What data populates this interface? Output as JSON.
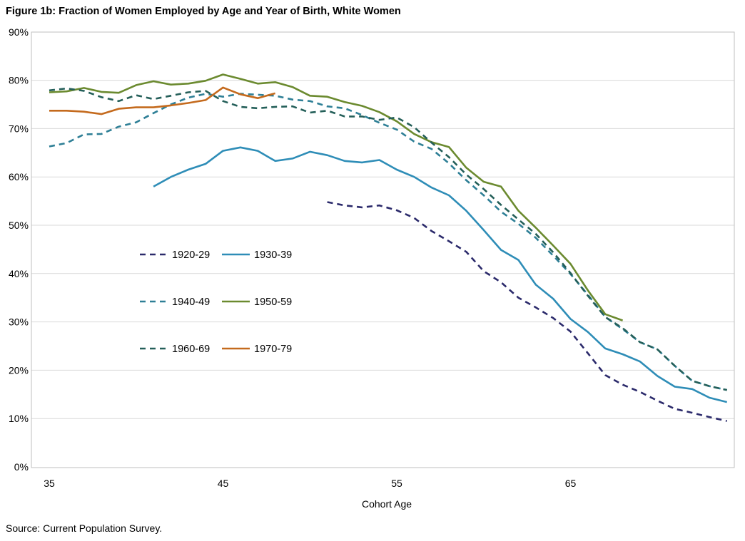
{
  "title": "Figure 1b: Fraction of Women Employed by Age and Year of Birth, White Women",
  "source": "Source: Current Population Survey.",
  "chart_data": {
    "type": "line",
    "title": "Figure 1b: Fraction of Women Employed by Age and Year of Birth, White Women",
    "xlabel": "Cohort Age",
    "ylabel": "",
    "xlim": [
      35,
      74
    ],
    "ylim": [
      0,
      0.9
    ],
    "x_ticks": [
      {
        "value": 35,
        "label": "35"
      },
      {
        "value": 45,
        "label": "45"
      },
      {
        "value": 55,
        "label": "55"
      },
      {
        "value": 65,
        "label": "65"
      }
    ],
    "y_ticks": [
      {
        "value": 0.0,
        "label": "0%"
      },
      {
        "value": 0.1,
        "label": "10%"
      },
      {
        "value": 0.2,
        "label": "20%"
      },
      {
        "value": 0.3,
        "label": "30%"
      },
      {
        "value": 0.4,
        "label": "40%"
      },
      {
        "value": 0.5,
        "label": "50%"
      },
      {
        "value": 0.6,
        "label": "60%"
      },
      {
        "value": 0.7,
        "label": "70%"
      },
      {
        "value": 0.8,
        "label": "80%"
      },
      {
        "value": 0.9,
        "label": "90%"
      }
    ],
    "grid": "horizontal",
    "legend_position": "center-left",
    "series": [
      {
        "name": "1920-29",
        "color": "#2b2a6b",
        "dashed": true,
        "x": [
          51,
          52,
          53,
          54,
          55,
          56,
          57,
          58,
          59,
          60,
          61,
          62,
          63,
          64,
          65,
          66,
          67,
          68,
          69,
          70,
          71,
          72,
          73,
          74
        ],
        "y": [
          0.548,
          0.541,
          0.537,
          0.541,
          0.531,
          0.515,
          0.488,
          0.467,
          0.445,
          0.405,
          0.382,
          0.35,
          0.33,
          0.308,
          0.28,
          0.235,
          0.19,
          0.17,
          0.155,
          0.137,
          0.12,
          0.112,
          0.103,
          0.095
        ]
      },
      {
        "name": "1930-39",
        "color": "#2e8db7",
        "dashed": false,
        "x": [
          41,
          42,
          43,
          44,
          45,
          46,
          47,
          48,
          49,
          50,
          51,
          52,
          53,
          54,
          55,
          56,
          57,
          58,
          59,
          60,
          61,
          62,
          63,
          64,
          65,
          66,
          67,
          68,
          69,
          70,
          71,
          72,
          73,
          74
        ],
        "y": [
          0.58,
          0.6,
          0.615,
          0.627,
          0.654,
          0.661,
          0.654,
          0.633,
          0.638,
          0.652,
          0.645,
          0.633,
          0.63,
          0.635,
          0.615,
          0.6,
          0.578,
          0.562,
          0.53,
          0.49,
          0.449,
          0.428,
          0.377,
          0.348,
          0.306,
          0.279,
          0.245,
          0.233,
          0.218,
          0.188,
          0.166,
          0.161,
          0.143,
          0.134
        ]
      },
      {
        "name": "1940-49",
        "color": "#2e7f96",
        "dashed": true,
        "x": [
          35,
          36,
          37,
          38,
          39,
          40,
          41,
          42,
          43,
          44,
          45,
          46,
          47,
          48,
          49,
          50,
          51,
          52,
          53,
          54,
          55,
          56,
          57,
          58,
          59,
          60,
          61,
          62,
          63,
          64,
          65,
          66,
          67,
          68,
          69,
          70,
          71,
          72,
          73,
          74
        ],
        "y": [
          0.663,
          0.67,
          0.688,
          0.689,
          0.704,
          0.713,
          0.732,
          0.75,
          0.764,
          0.772,
          0.766,
          0.772,
          0.77,
          0.768,
          0.76,
          0.757,
          0.746,
          0.742,
          0.728,
          0.712,
          0.698,
          0.673,
          0.658,
          0.628,
          0.593,
          0.562,
          0.528,
          0.503,
          0.474,
          0.437,
          0.399,
          0.356,
          0.31,
          0.285,
          0.258,
          0.243,
          0.209,
          0.178,
          0.167,
          0.159
        ]
      },
      {
        "name": "1950-59",
        "color": "#6b8a2f",
        "dashed": false,
        "x": [
          35,
          36,
          37,
          38,
          39,
          40,
          41,
          42,
          43,
          44,
          45,
          46,
          47,
          48,
          49,
          50,
          51,
          52,
          53,
          54,
          55,
          56,
          57,
          58,
          59,
          60,
          61,
          62,
          63,
          64,
          65,
          66,
          67,
          68
        ],
        "y": [
          0.775,
          0.777,
          0.784,
          0.776,
          0.774,
          0.79,
          0.798,
          0.791,
          0.793,
          0.799,
          0.812,
          0.803,
          0.793,
          0.796,
          0.786,
          0.768,
          0.766,
          0.755,
          0.747,
          0.734,
          0.715,
          0.689,
          0.672,
          0.662,
          0.619,
          0.59,
          0.58,
          0.53,
          0.495,
          0.458,
          0.42,
          0.365,
          0.316,
          0.303
        ]
      },
      {
        "name": "1960-69",
        "color": "#245f59",
        "dashed": true,
        "x": [
          35,
          36,
          37,
          38,
          39,
          40,
          41,
          42,
          43,
          44,
          45,
          46,
          47,
          48,
          49,
          50,
          51,
          52,
          53,
          54,
          55,
          56,
          57,
          58,
          59,
          60,
          61,
          62,
          63,
          64,
          65,
          66,
          67,
          68,
          69,
          70,
          71,
          72,
          73,
          74
        ],
        "y": [
          0.779,
          0.783,
          0.778,
          0.765,
          0.757,
          0.769,
          0.761,
          0.768,
          0.775,
          0.778,
          0.757,
          0.745,
          0.742,
          0.745,
          0.746,
          0.733,
          0.737,
          0.725,
          0.725,
          0.718,
          0.723,
          0.703,
          0.671,
          0.641,
          0.605,
          0.575,
          0.542,
          0.512,
          0.482,
          0.444,
          0.401,
          0.354,
          0.31,
          0.287,
          0.258,
          0.243,
          0.209,
          0.178,
          0.167,
          0.159
        ]
      },
      {
        "name": "1970-79",
        "color": "#c46a1d",
        "dashed": false,
        "x": [
          35,
          36,
          37,
          38,
          39,
          40,
          41,
          42,
          43,
          44,
          45,
          46,
          47,
          48
        ],
        "y": [
          0.737,
          0.737,
          0.735,
          0.73,
          0.741,
          0.744,
          0.744,
          0.748,
          0.753,
          0.759,
          0.785,
          0.771,
          0.763,
          0.773
        ]
      }
    ]
  }
}
